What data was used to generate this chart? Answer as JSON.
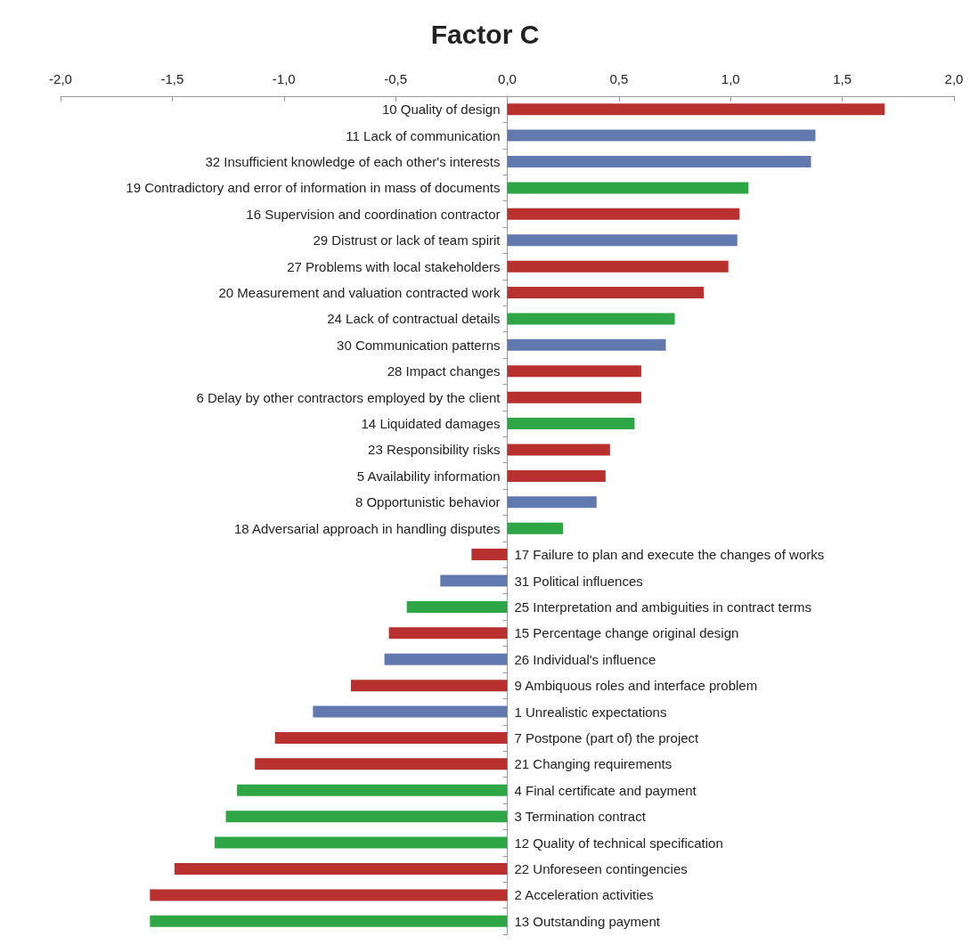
{
  "chart_data": {
    "type": "bar",
    "orientation": "horizontal",
    "title": "Factor C",
    "categories": [
      "10 Quality of design",
      "11 Lack of communication",
      "32 Insufficient knowledge of each other's interests",
      "19 Contradictory and error of information in mass of documents",
      "16 Supervision and coordination contractor",
      "29 Distrust or lack of team spirit",
      "27 Problems with local stakeholders",
      "20 Measurement and valuation contracted work",
      "24 Lack of contractual details",
      "30 Communication patterns",
      "28 Impact changes",
      "6 Delay by other contractors employed by the client",
      "14 Liquidated damages",
      "23 Responsibility risks",
      "5 Availability information",
      "8 Opportunistic behavior",
      "18 Adversarial approach in handling disputes",
      "17 Failure to plan and execute the changes of works",
      "31 Political influences",
      "25 Interpretation and ambiguities in contract terms",
      "15 Percentage change original design",
      "26 Individual's influence",
      "9 Ambiquous roles and interface problem",
      "1 Unrealistic expectations",
      "7 Postpone (part of) the project",
      "21 Changing requirements",
      "4 Final certificate and payment",
      "3 Termination contract",
      "12 Quality of technical specification",
      "22 Unforeseen contingencies",
      "2 Acceleration activities",
      "13 Outstanding payment"
    ],
    "values": [
      1.69,
      1.38,
      1.36,
      1.08,
      1.04,
      1.03,
      0.99,
      0.88,
      0.75,
      0.71,
      0.6,
      0.6,
      0.57,
      0.46,
      0.44,
      0.4,
      0.25,
      -0.16,
      -0.3,
      -0.45,
      -0.53,
      -0.55,
      -0.7,
      -0.87,
      -1.04,
      -1.13,
      -1.21,
      -1.26,
      -1.31,
      -1.49,
      -1.6,
      -1.6
    ],
    "colors": [
      "#b8312f",
      "#6279b0",
      "#6279b0",
      "#2fa646",
      "#b8312f",
      "#6279b0",
      "#b8312f",
      "#b8312f",
      "#2fa646",
      "#6279b0",
      "#b8312f",
      "#b8312f",
      "#2fa646",
      "#b8312f",
      "#b8312f",
      "#6279b0",
      "#2fa646",
      "#b8312f",
      "#6279b0",
      "#2fa646",
      "#b8312f",
      "#6279b0",
      "#b8312f",
      "#6279b0",
      "#b8312f",
      "#b8312f",
      "#2fa646",
      "#2fa646",
      "#2fa646",
      "#b8312f",
      "#b8312f",
      "#2fa646"
    ],
    "xlim": [
      -2,
      2
    ],
    "xticks": [
      {
        "value": -2,
        "label": "-2,0"
      },
      {
        "value": -1.5,
        "label": "-1,5"
      },
      {
        "value": -1,
        "label": "-1,0"
      },
      {
        "value": -0.5,
        "label": "-0,5"
      },
      {
        "value": 0,
        "label": "0,0"
      },
      {
        "value": 0.5,
        "label": "0,5"
      },
      {
        "value": 1,
        "label": "1,0"
      },
      {
        "value": 1.5,
        "label": "1,5"
      },
      {
        "value": 2,
        "label": "2,0"
      }
    ],
    "grid": false
  }
}
